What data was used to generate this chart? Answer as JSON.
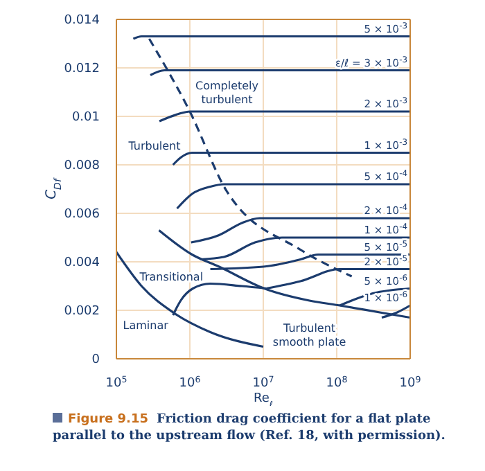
{
  "chart_data": {
    "type": "line",
    "xlabel": "Re$_{ℓ}$",
    "ylabel": "C$_{Df}$",
    "log": "x",
    "grid": true,
    "marker": "none",
    "xlim": [
      100000,
      1000000000
    ],
    "ylim": [
      0,
      0.014
    ],
    "xticks": [
      {
        "value": 100000,
        "label": "10$^{5}$"
      },
      {
        "value": 1000000,
        "label": "10$^{6}$"
      },
      {
        "value": 10000000,
        "label": "10$^{7}$"
      },
      {
        "value": 100000000,
        "label": "10$^{8}$"
      },
      {
        "value": 1000000000,
        "label": "10$^{9}$"
      }
    ],
    "yticks": [
      0,
      0.002,
      0.004,
      0.006,
      0.008,
      0.01,
      0.012,
      0.014
    ],
    "series": [
      {
        "name": "5 × 10$^{-3}$",
        "color": "#1c3c6e",
        "x": [
          170000,
          220000,
          1000000000
        ],
        "values": [
          0.0132,
          0.0133,
          0.0133
        ]
      },
      {
        "name": "ε/ℓ = 3 × 10$^{-3}$",
        "color": "#1c3c6e",
        "x": [
          290000,
          450000,
          1000000000
        ],
        "values": [
          0.0117,
          0.0119,
          0.0119
        ]
      },
      {
        "name": "2 × 10$^{-3}$",
        "color": "#1c3c6e",
        "x": [
          385000,
          700000,
          1000000,
          1000000000
        ],
        "values": [
          0.0098,
          0.0101,
          0.0102,
          0.0102
        ]
      },
      {
        "name": "1 × 10$^{-3}$",
        "color": "#1c3c6e",
        "x": [
          590000,
          750000,
          1070000,
          1400000,
          1000000000
        ],
        "values": [
          0.008,
          0.0083,
          0.0085,
          0.0085,
          0.0085
        ]
      },
      {
        "name": "5 × 10$^{-4}$",
        "color": "#1c3c6e",
        "x": [
          670000,
          1070000,
          1900000,
          2900000,
          1000000000
        ],
        "values": [
          0.0062,
          0.0068,
          0.0071,
          0.0072,
          0.0072
        ]
      },
      {
        "name": "2 × 10$^{-4}$",
        "color": "#1c3c6e",
        "x": [
          1040000,
          2500000,
          5100000,
          8900000,
          1000000000
        ],
        "values": [
          0.0048,
          0.0051,
          0.0056,
          0.0058,
          0.0058
        ]
      },
      {
        "name": "1 × 10$^{-4}$",
        "color": "#1c3c6e",
        "x": [
          1400000,
          2900000,
          7700000,
          18000000,
          1000000000
        ],
        "values": [
          0.0041,
          0.0042,
          0.0048,
          0.005,
          0.005
        ]
      },
      {
        "name": "5 × 10$^{-5}$",
        "color": "#1c3c6e",
        "x": [
          1900000,
          10000000,
          32000000,
          56000000,
          1000000000
        ],
        "values": [
          0.0037,
          0.0038,
          0.0041,
          0.0043,
          0.0043
        ]
      },
      {
        "name": "2 × 10$^{-5}$",
        "color": "#1c3c6e",
        "x": [
          11000000,
          32000000,
          110000000,
          1000000000
        ],
        "values": [
          0.0029,
          0.0032,
          0.0037,
          0.0037
        ]
      },
      {
        "name": "5 × 10$^{-6}$",
        "color": "#1c3c6e",
        "x": [
          110000000,
          310000000,
          1000000000
        ],
        "values": [
          0.0022,
          0.0027,
          0.0029
        ]
      },
      {
        "name": "1 × 10$^{-6}$",
        "color": "#1c3c6e",
        "x": [
          410000000,
          650000000,
          1000000000
        ],
        "values": [
          0.0017,
          0.0019,
          0.0022
        ]
      },
      {
        "color": "#1c3c6e",
        "x": [
          590000,
          750000,
          1100000,
          1900000,
          5100000,
          11000000
        ],
        "values": [
          0.0018,
          0.0024,
          0.0029,
          0.0031,
          0.003,
          0.0029
        ]
      },
      {
        "color": "#1c3c6e",
        "x": [
          380000,
          1070000,
          2500000,
          10300000,
          42500000,
          110000000,
          410000000,
          1000000000
        ],
        "values": [
          0.0053,
          0.0043,
          0.0038,
          0.0029,
          0.0024,
          0.0022,
          0.0019,
          0.0017
        ]
      },
      {
        "color": "#1c3c6e",
        "x": [
          100000,
          220000,
          600000,
          1900000,
          10000000
        ],
        "values": [
          0.0044,
          0.003,
          0.0019,
          0.0011,
          0.0005
        ]
      },
      {
        "color": "#1c3c6e",
        "line_style": "dashed",
        "x": [
          280000,
          1000000,
          3200000,
          32000000,
          160000000
        ],
        "values": [
          0.0132,
          0.0102,
          0.0069,
          0.0045,
          0.0034
        ]
      }
    ],
    "annotations": [
      "Completely\nturbulent",
      "Turbulent",
      "Transitional",
      "Laminar",
      "Turbulent\nsmooth plate",
      "Figure 9.15",
      "Friction drag coefficient for a flat plate parallel to the upstream flow (Ref. 18, with permission)."
    ]
  }
}
